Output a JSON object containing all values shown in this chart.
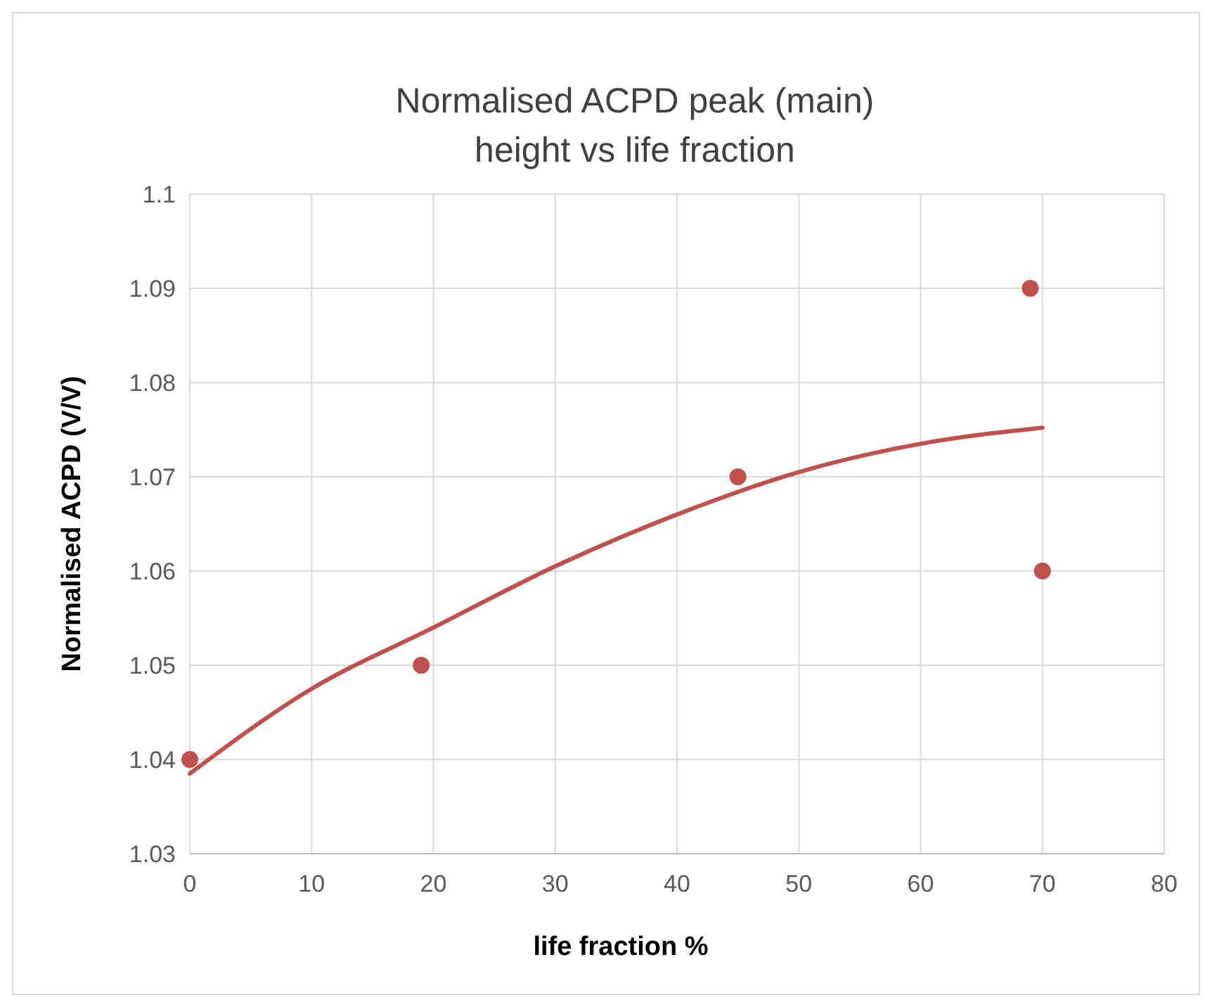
{
  "chart_data": {
    "type": "scatter",
    "title": "Normalised ACPD peak (main)\nheight vs life fraction",
    "xlabel": "life fraction %",
    "ylabel": "Normalised ACPD (V/V)",
    "xlim": [
      0,
      80
    ],
    "xticks": [
      0,
      10,
      20,
      30,
      40,
      50,
      60,
      70,
      80
    ],
    "ylim": [
      1.03,
      1.1
    ],
    "yticks": [
      {
        "value": 1.03,
        "label": "1.03"
      },
      {
        "value": 1.04,
        "label": "1.04"
      },
      {
        "value": 1.05,
        "label": "1.05"
      },
      {
        "value": 1.06,
        "label": "1.06"
      },
      {
        "value": 1.07,
        "label": "1.07"
      },
      {
        "value": 1.08,
        "label": "1.08"
      },
      {
        "value": 1.09,
        "label": "1.09"
      },
      {
        "value": 1.1,
        "label": "1.1"
      }
    ],
    "grid": true,
    "series": [
      {
        "marker": "circle",
        "color": "#c0504d",
        "x": [
          0,
          19,
          45,
          69,
          70
        ],
        "values": [
          1.04,
          1.05,
          1.07,
          1.09,
          1.06
        ]
      },
      {
        "type": "line",
        "marker": "none",
        "color": "#c0504d",
        "x": [
          0,
          10,
          20,
          30,
          40,
          50,
          60,
          70
        ],
        "values": [
          1.0385,
          1.0475,
          1.054,
          1.0605,
          1.066,
          1.0705,
          1.0735,
          1.0752
        ]
      }
    ]
  }
}
